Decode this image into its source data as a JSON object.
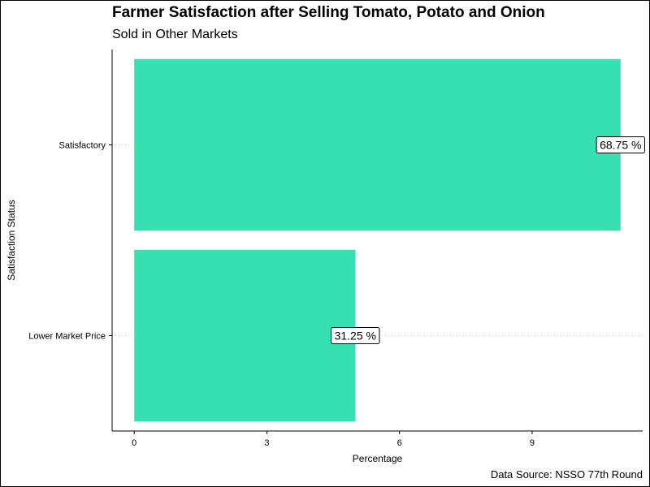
{
  "chart_data": {
    "type": "bar",
    "orientation": "horizontal",
    "title": "Farmer Satisfaction after Selling Tomato, Potato and Onion",
    "subtitle": "Sold in Other Markets",
    "xlabel": "Percentage",
    "ylabel": "Satisfaction Status",
    "caption": "Data Source: NSSO 77th Round",
    "categories": [
      "Lower Market Price",
      "Satisfactory"
    ],
    "values": [
      5,
      11
    ],
    "data_labels": [
      "31.25 %",
      "68.75 %"
    ],
    "x_ticks": [
      0,
      3,
      6,
      9
    ],
    "xlim": [
      -0.5,
      11.5
    ],
    "bar_color": "#36E0B0",
    "grid": "dotted horizontal at categories",
    "legend": "none"
  }
}
